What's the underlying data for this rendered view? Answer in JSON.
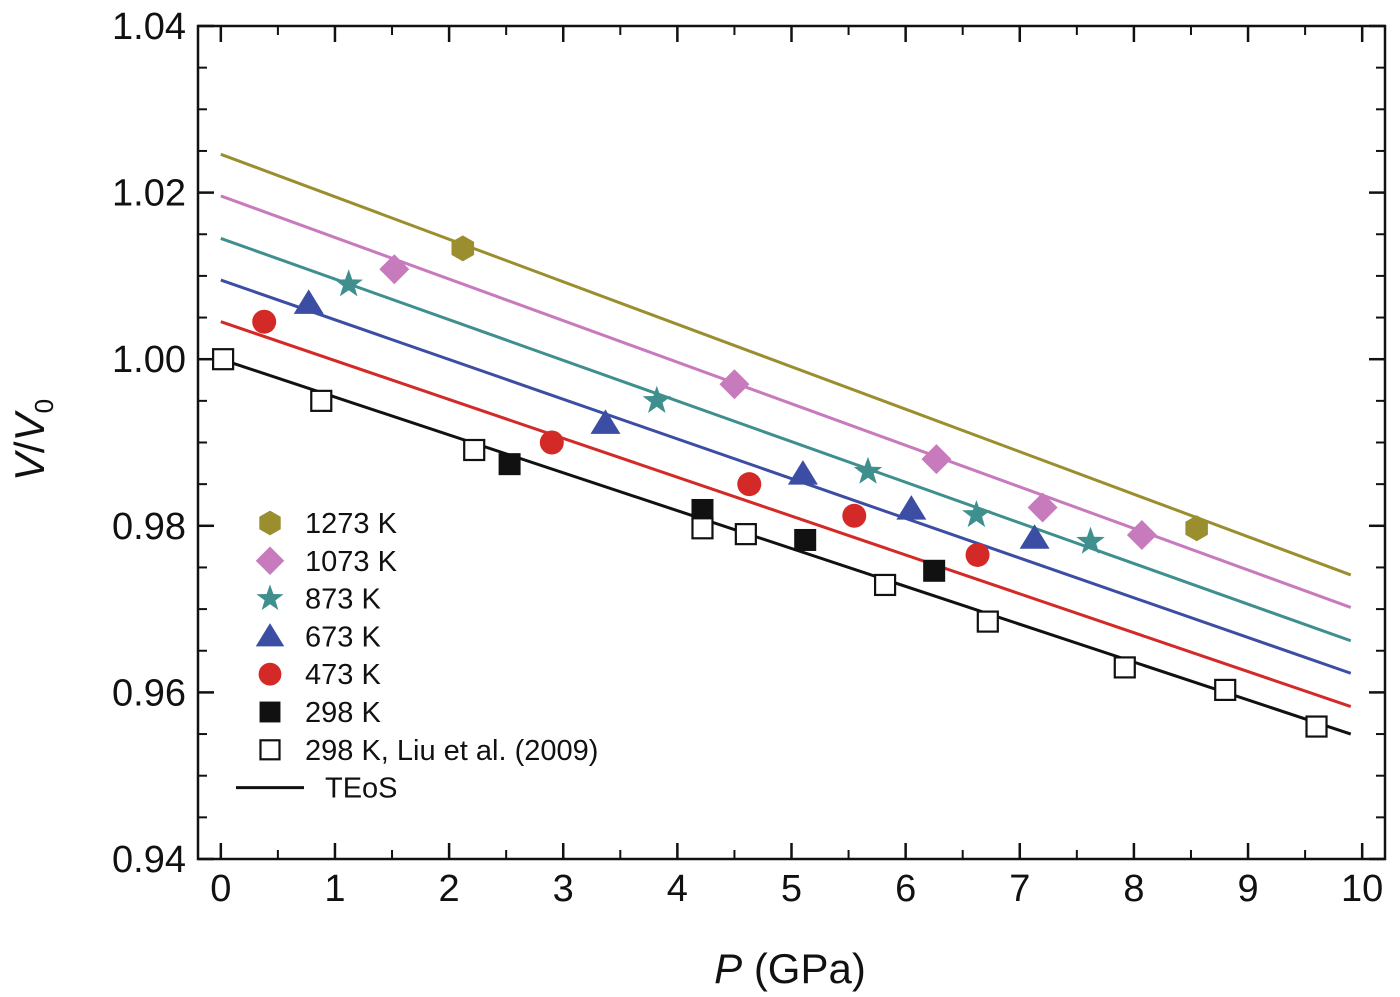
{
  "chart_data": {
    "type": "scatter",
    "xlabel": {
      "italic": "P",
      "rest": " (GPa)"
    },
    "ylabel": {
      "v": "V",
      "slash": "/",
      "v0": "V",
      "sub": "0"
    },
    "xlim": [
      -0.2,
      10.2
    ],
    "ylim": [
      0.94,
      1.04
    ],
    "x_ticks": [
      "0",
      "1",
      "2",
      "3",
      "4",
      "5",
      "6",
      "7",
      "8",
      "9",
      "10"
    ],
    "y_ticks": [
      "0.94",
      "0.96",
      "0.98",
      "1.00",
      "1.02",
      "1.04"
    ],
    "grid": false,
    "legend_position": "lower-left",
    "series": [
      {
        "name": "1273 K",
        "marker": "hexagon",
        "color": "#9a8e2e",
        "points": [
          [
            2.12,
            1.0133
          ],
          [
            8.55,
            0.9797
          ]
        ]
      },
      {
        "name": "1073 K",
        "marker": "diamond",
        "color": "#c77bbd",
        "points": [
          [
            1.52,
            1.0108
          ],
          [
            4.5,
            0.997
          ],
          [
            6.27,
            0.988
          ],
          [
            7.2,
            0.9822
          ],
          [
            8.07,
            0.9789
          ]
        ]
      },
      {
        "name": "873 K",
        "marker": "star",
        "color": "#3f8f8f",
        "points": [
          [
            1.12,
            1.009
          ],
          [
            3.82,
            0.995
          ],
          [
            5.67,
            0.9865
          ],
          [
            6.62,
            0.9813
          ],
          [
            7.62,
            0.9781
          ]
        ]
      },
      {
        "name": "673 K",
        "marker": "triangle",
        "color": "#3b4ea3",
        "points": [
          [
            0.77,
            1.0067
          ],
          [
            3.37,
            0.9923
          ],
          [
            5.1,
            0.9862
          ],
          [
            6.05,
            0.982
          ],
          [
            7.13,
            0.9785
          ]
        ]
      },
      {
        "name": "473 K",
        "marker": "circle",
        "color": "#d42a27",
        "points": [
          [
            0.38,
            1.0045
          ],
          [
            2.9,
            0.99
          ],
          [
            4.63,
            0.985
          ],
          [
            5.55,
            0.9812
          ],
          [
            6.63,
            0.9765
          ]
        ]
      },
      {
        "name": "298 K",
        "marker": "square-filled",
        "color": "#111111",
        "points": [
          [
            2.53,
            0.9874
          ],
          [
            4.22,
            0.9819
          ],
          [
            5.12,
            0.9783
          ],
          [
            6.25,
            0.9746
          ]
        ]
      },
      {
        "name": "298 K, Liu et al. (2009)",
        "marker": "square-open",
        "color": "#111111",
        "points": [
          [
            0.02,
            1.0
          ],
          [
            0.88,
            0.995
          ],
          [
            2.22,
            0.9891
          ],
          [
            4.22,
            0.9797
          ],
          [
            4.6,
            0.979
          ],
          [
            5.82,
            0.9729
          ],
          [
            6.72,
            0.9685
          ],
          [
            7.92,
            0.963
          ],
          [
            8.8,
            0.9603
          ],
          [
            9.6,
            0.9559
          ]
        ]
      },
      {
        "name": "TEoS",
        "marker": "line",
        "color": "#111111",
        "lines": [
          {
            "color": "#111111",
            "x": [
              0.0,
              9.9
            ],
            "y": [
              1.0,
              0.955
            ]
          },
          {
            "color": "#d42a27",
            "x": [
              0.0,
              9.9
            ],
            "y": [
              1.0045,
              0.9583
            ]
          },
          {
            "color": "#3b4ea3",
            "x": [
              0.0,
              9.9
            ],
            "y": [
              1.0095,
              0.9623
            ]
          },
          {
            "color": "#3f8f8f",
            "x": [
              0.0,
              9.9
            ],
            "y": [
              1.0145,
              0.9662
            ]
          },
          {
            "color": "#c77bbd",
            "x": [
              0.0,
              9.9
            ],
            "y": [
              1.0196,
              0.9702
            ]
          },
          {
            "color": "#9a8e2e",
            "x": [
              0.0,
              9.9
            ],
            "y": [
              1.0246,
              0.9741
            ]
          }
        ]
      }
    ]
  }
}
